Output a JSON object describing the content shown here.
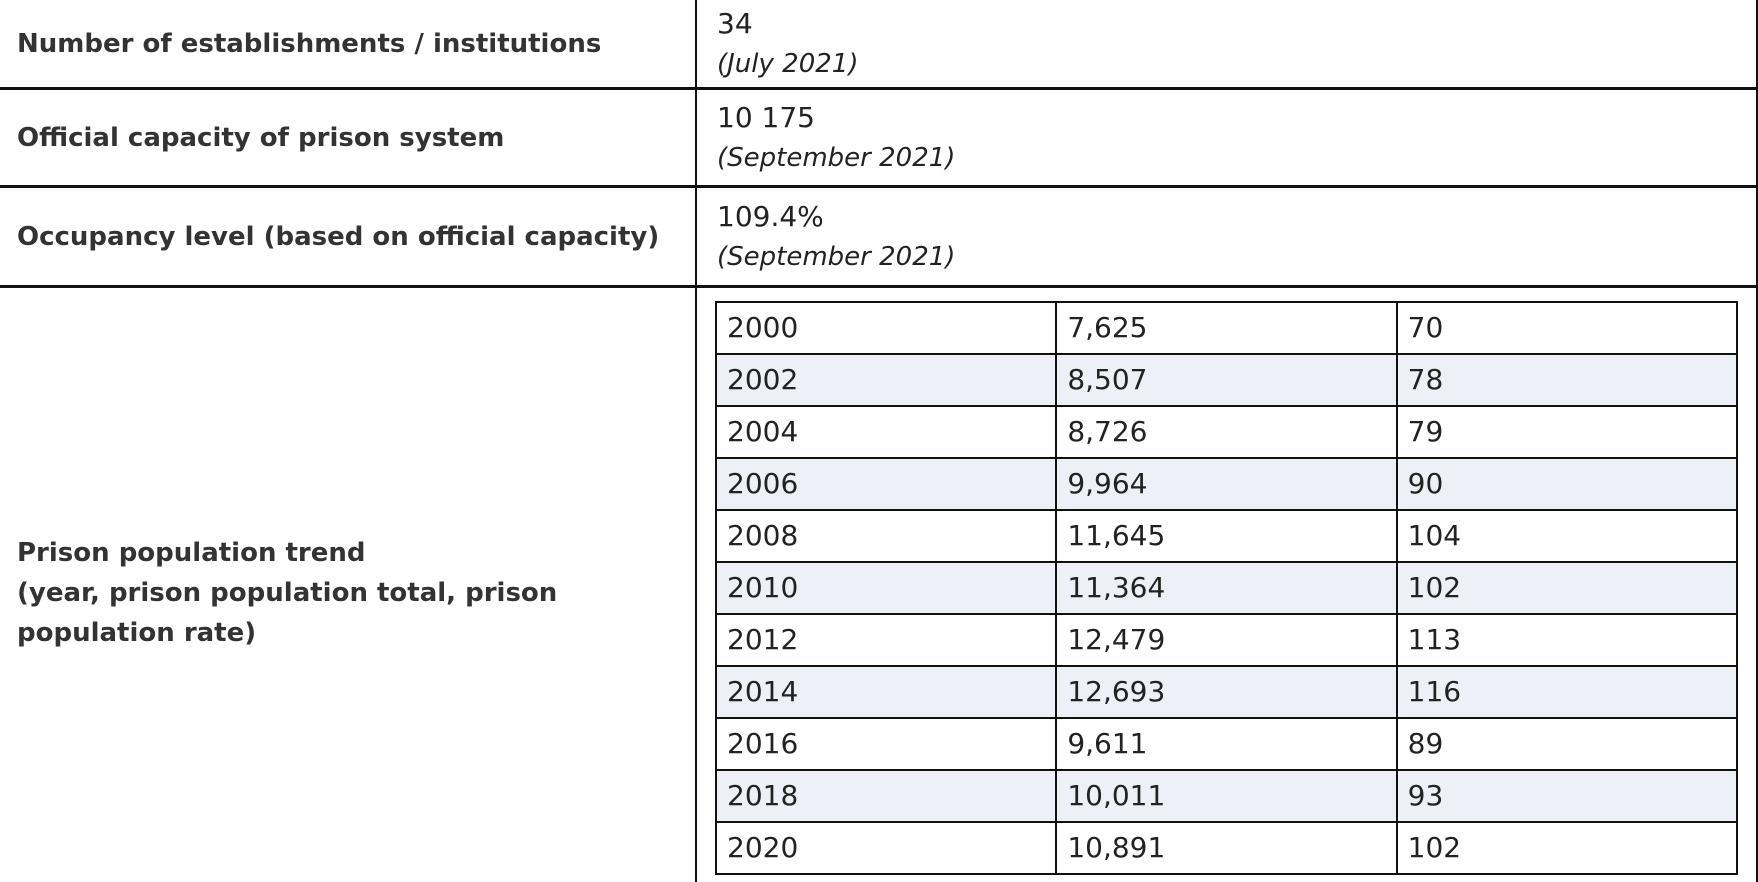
{
  "colors": {
    "border": "#111111",
    "label_text": "#333333",
    "value_text": "#222222",
    "shaded_row": "#edf1f7",
    "background": "#ffffff"
  },
  "stats": {
    "rows": [
      {
        "label": "Number of establishments / institutions",
        "value": "34",
        "date": "(July 2021)"
      },
      {
        "label": "Official capacity of prison system",
        "value": "10 175",
        "date": "(September 2021)"
      },
      {
        "label": "Occupancy level (based on official capacity)",
        "value": "109.4%",
        "date": "(September 2021)"
      }
    ]
  },
  "trend": {
    "label_title": "Prison population trend",
    "label_detail": "(year, prison population total, prison population rate)",
    "rows": [
      [
        "2000",
        "7,625",
        "70"
      ],
      [
        "2002",
        "8,507",
        "78"
      ],
      [
        "2004",
        "8,726",
        "79"
      ],
      [
        "2006",
        "9,964",
        "90"
      ],
      [
        "2008",
        "11,645",
        "104"
      ],
      [
        "2010",
        "11,364",
        "102"
      ],
      [
        "2012",
        "12,479",
        "113"
      ],
      [
        "2014",
        "12,693",
        "116"
      ],
      [
        "2016",
        "9,611",
        "89"
      ],
      [
        "2018",
        "10,011",
        "93"
      ],
      [
        "2020",
        "10,891",
        "102"
      ]
    ]
  }
}
